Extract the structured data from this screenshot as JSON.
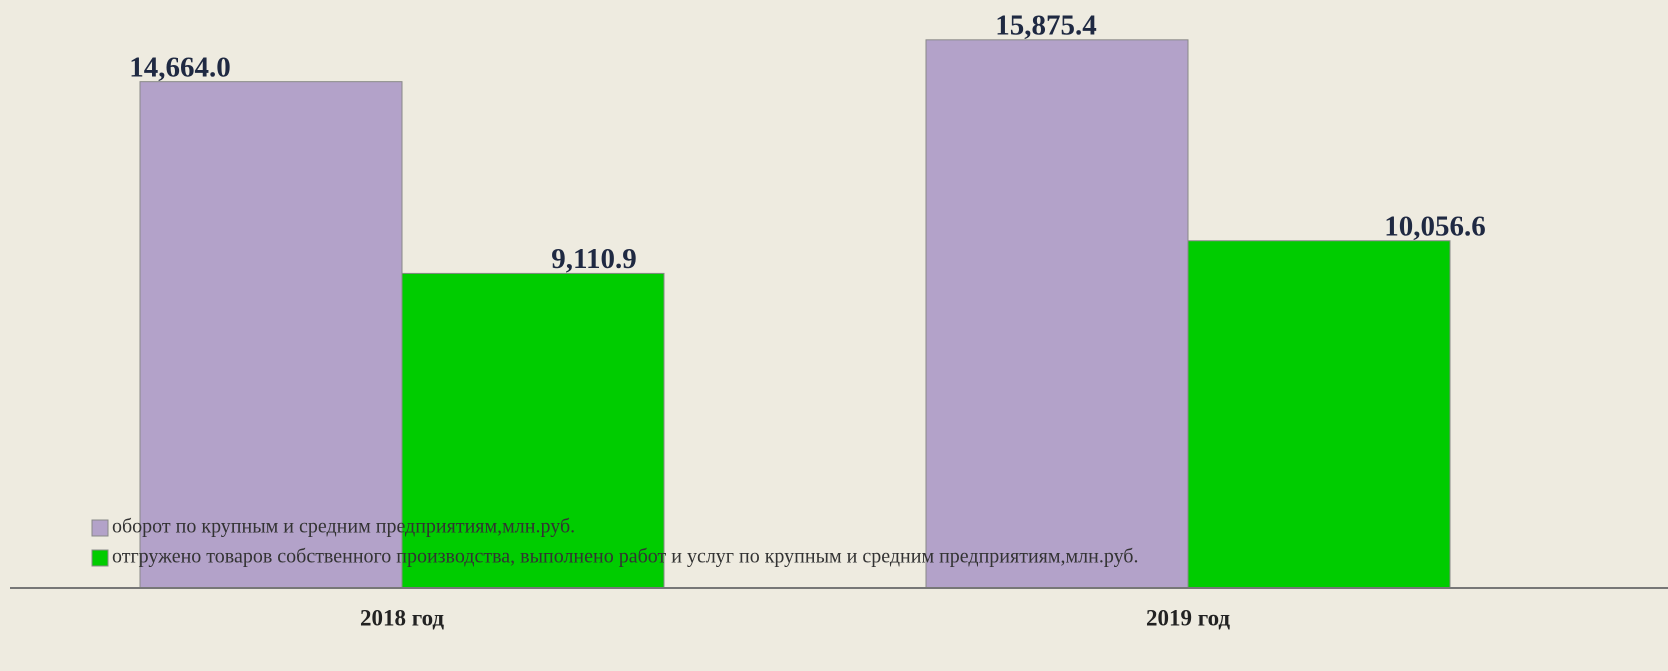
{
  "chart_data": {
    "type": "bar",
    "categories": [
      "2018 год",
      "2019 год"
    ],
    "series": [
      {
        "name": "оборот по крупным и средним предприятиям,млн.руб.",
        "color": "#b3a2c9",
        "values": [
          14664.0,
          15875.4
        ],
        "value_labels": [
          "14,664.0",
          "15,875.4"
        ]
      },
      {
        "name": "отгружено товаров собственного производства, выполнено работ и услуг по крупным и средним предприятиям,млн.руб.",
        "color": "#00cc00",
        "values": [
          9110.9,
          10056.6
        ],
        "value_labels": [
          "9,110.9",
          "10,056.6"
        ]
      }
    ],
    "ylim": [
      0,
      17000
    ]
  }
}
